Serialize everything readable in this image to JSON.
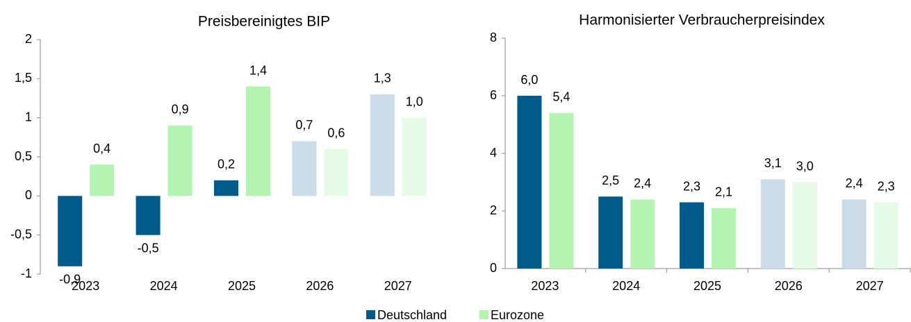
{
  "chart_data": [
    {
      "type": "bar",
      "title": "Preisbereinigtes BIP",
      "categories": [
        "2023",
        "2024",
        "2025",
        "2026",
        "2027"
      ],
      "series": [
        {
          "name": "Deutschland",
          "color": "#005a8c",
          "colors": [
            "#005a8c",
            "#005a8c",
            "#005a8c",
            "#c9dce8",
            "#c9dce8"
          ],
          "values": [
            -0.9,
            -0.5,
            0.2,
            0.7,
            1.3
          ],
          "value_labels": [
            "-0,9",
            "-0,5",
            "0,2",
            "0,7",
            "1,3"
          ]
        },
        {
          "name": "Eurozone",
          "color": "#b3f5b0",
          "colors": [
            "#b3f5b0",
            "#b3f5b0",
            "#b3f5b0",
            "#e6fbe5",
            "#e6fbe5"
          ],
          "values": [
            0.4,
            0.9,
            1.4,
            0.6,
            1.0
          ],
          "value_labels": [
            "0,4",
            "0,9",
            "1,4",
            "0,6",
            "1,0"
          ]
        }
      ],
      "ylim": [
        -1,
        2
      ],
      "yticks": [
        -1,
        {
          "value": -0.5,
          "label": "-0,5"
        },
        0,
        {
          "value": 0.5,
          "label": "0,5"
        },
        1,
        {
          "value": 1.5,
          "label": "1,5"
        },
        2
      ]
    },
    {
      "type": "bar",
      "title": "Harmonisierter Verbraucherpreisindex",
      "categories": [
        "2023",
        "2024",
        "2025",
        "2026",
        "2027"
      ],
      "series": [
        {
          "name": "Deutschland",
          "color": "#005a8c",
          "colors": [
            "#005a8c",
            "#005a8c",
            "#005a8c",
            "#c9dce8",
            "#c9dce8"
          ],
          "values": [
            6.0,
            2.5,
            2.3,
            3.1,
            2.4
          ],
          "value_labels": [
            "6,0",
            "2,5",
            "2,3",
            "3,1",
            "2,4"
          ]
        },
        {
          "name": "Eurozone",
          "color": "#b3f5b0",
          "colors": [
            "#b3f5b0",
            "#b3f5b0",
            "#b3f5b0",
            "#e6fbe5",
            "#e6fbe5"
          ],
          "values": [
            5.4,
            2.4,
            2.1,
            3.0,
            2.3
          ],
          "value_labels": [
            "5,4",
            "2,4",
            "2,1",
            "3,0",
            "2,3"
          ]
        }
      ],
      "ylim": [
        0,
        8
      ],
      "yticks": [
        0,
        2,
        4,
        6,
        8
      ]
    }
  ]
}
